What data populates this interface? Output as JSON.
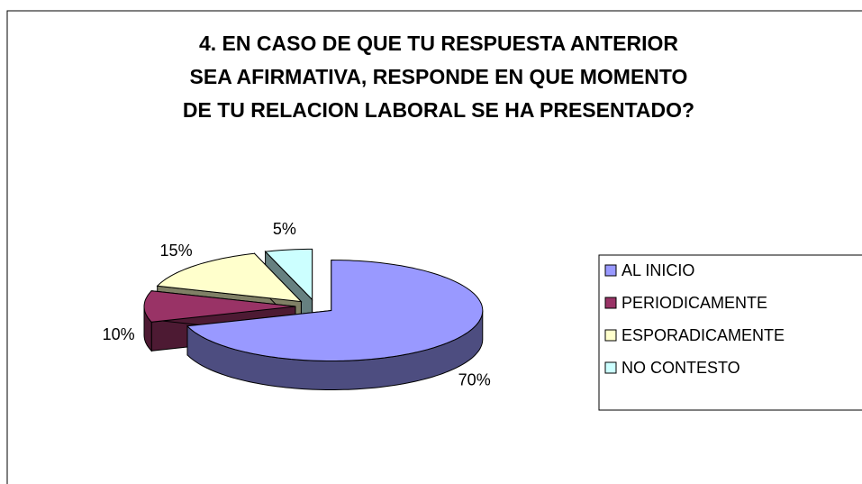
{
  "chart_data": {
    "type": "pie",
    "title": [
      "4. EN CASO DE QUE TU RESPUESTA ANTERIOR",
      "SEA AFIRMATIVA, RESPONDE  EN QUE MOMENTO",
      "DE TU RELACION LABORAL SE HA PRESENTADO?"
    ],
    "categories": [
      "AL INICIO",
      "PERIODICAMENTE",
      "ESPORADICAMENTE",
      "NO CONTESTO"
    ],
    "values": [
      70,
      10,
      15,
      5
    ],
    "value_labels": [
      "70%",
      "10%",
      "15%",
      "5%"
    ],
    "colors": [
      "#9999ff",
      "#993366",
      "#ffffcc",
      "#ccffff"
    ],
    "legend": "right"
  }
}
